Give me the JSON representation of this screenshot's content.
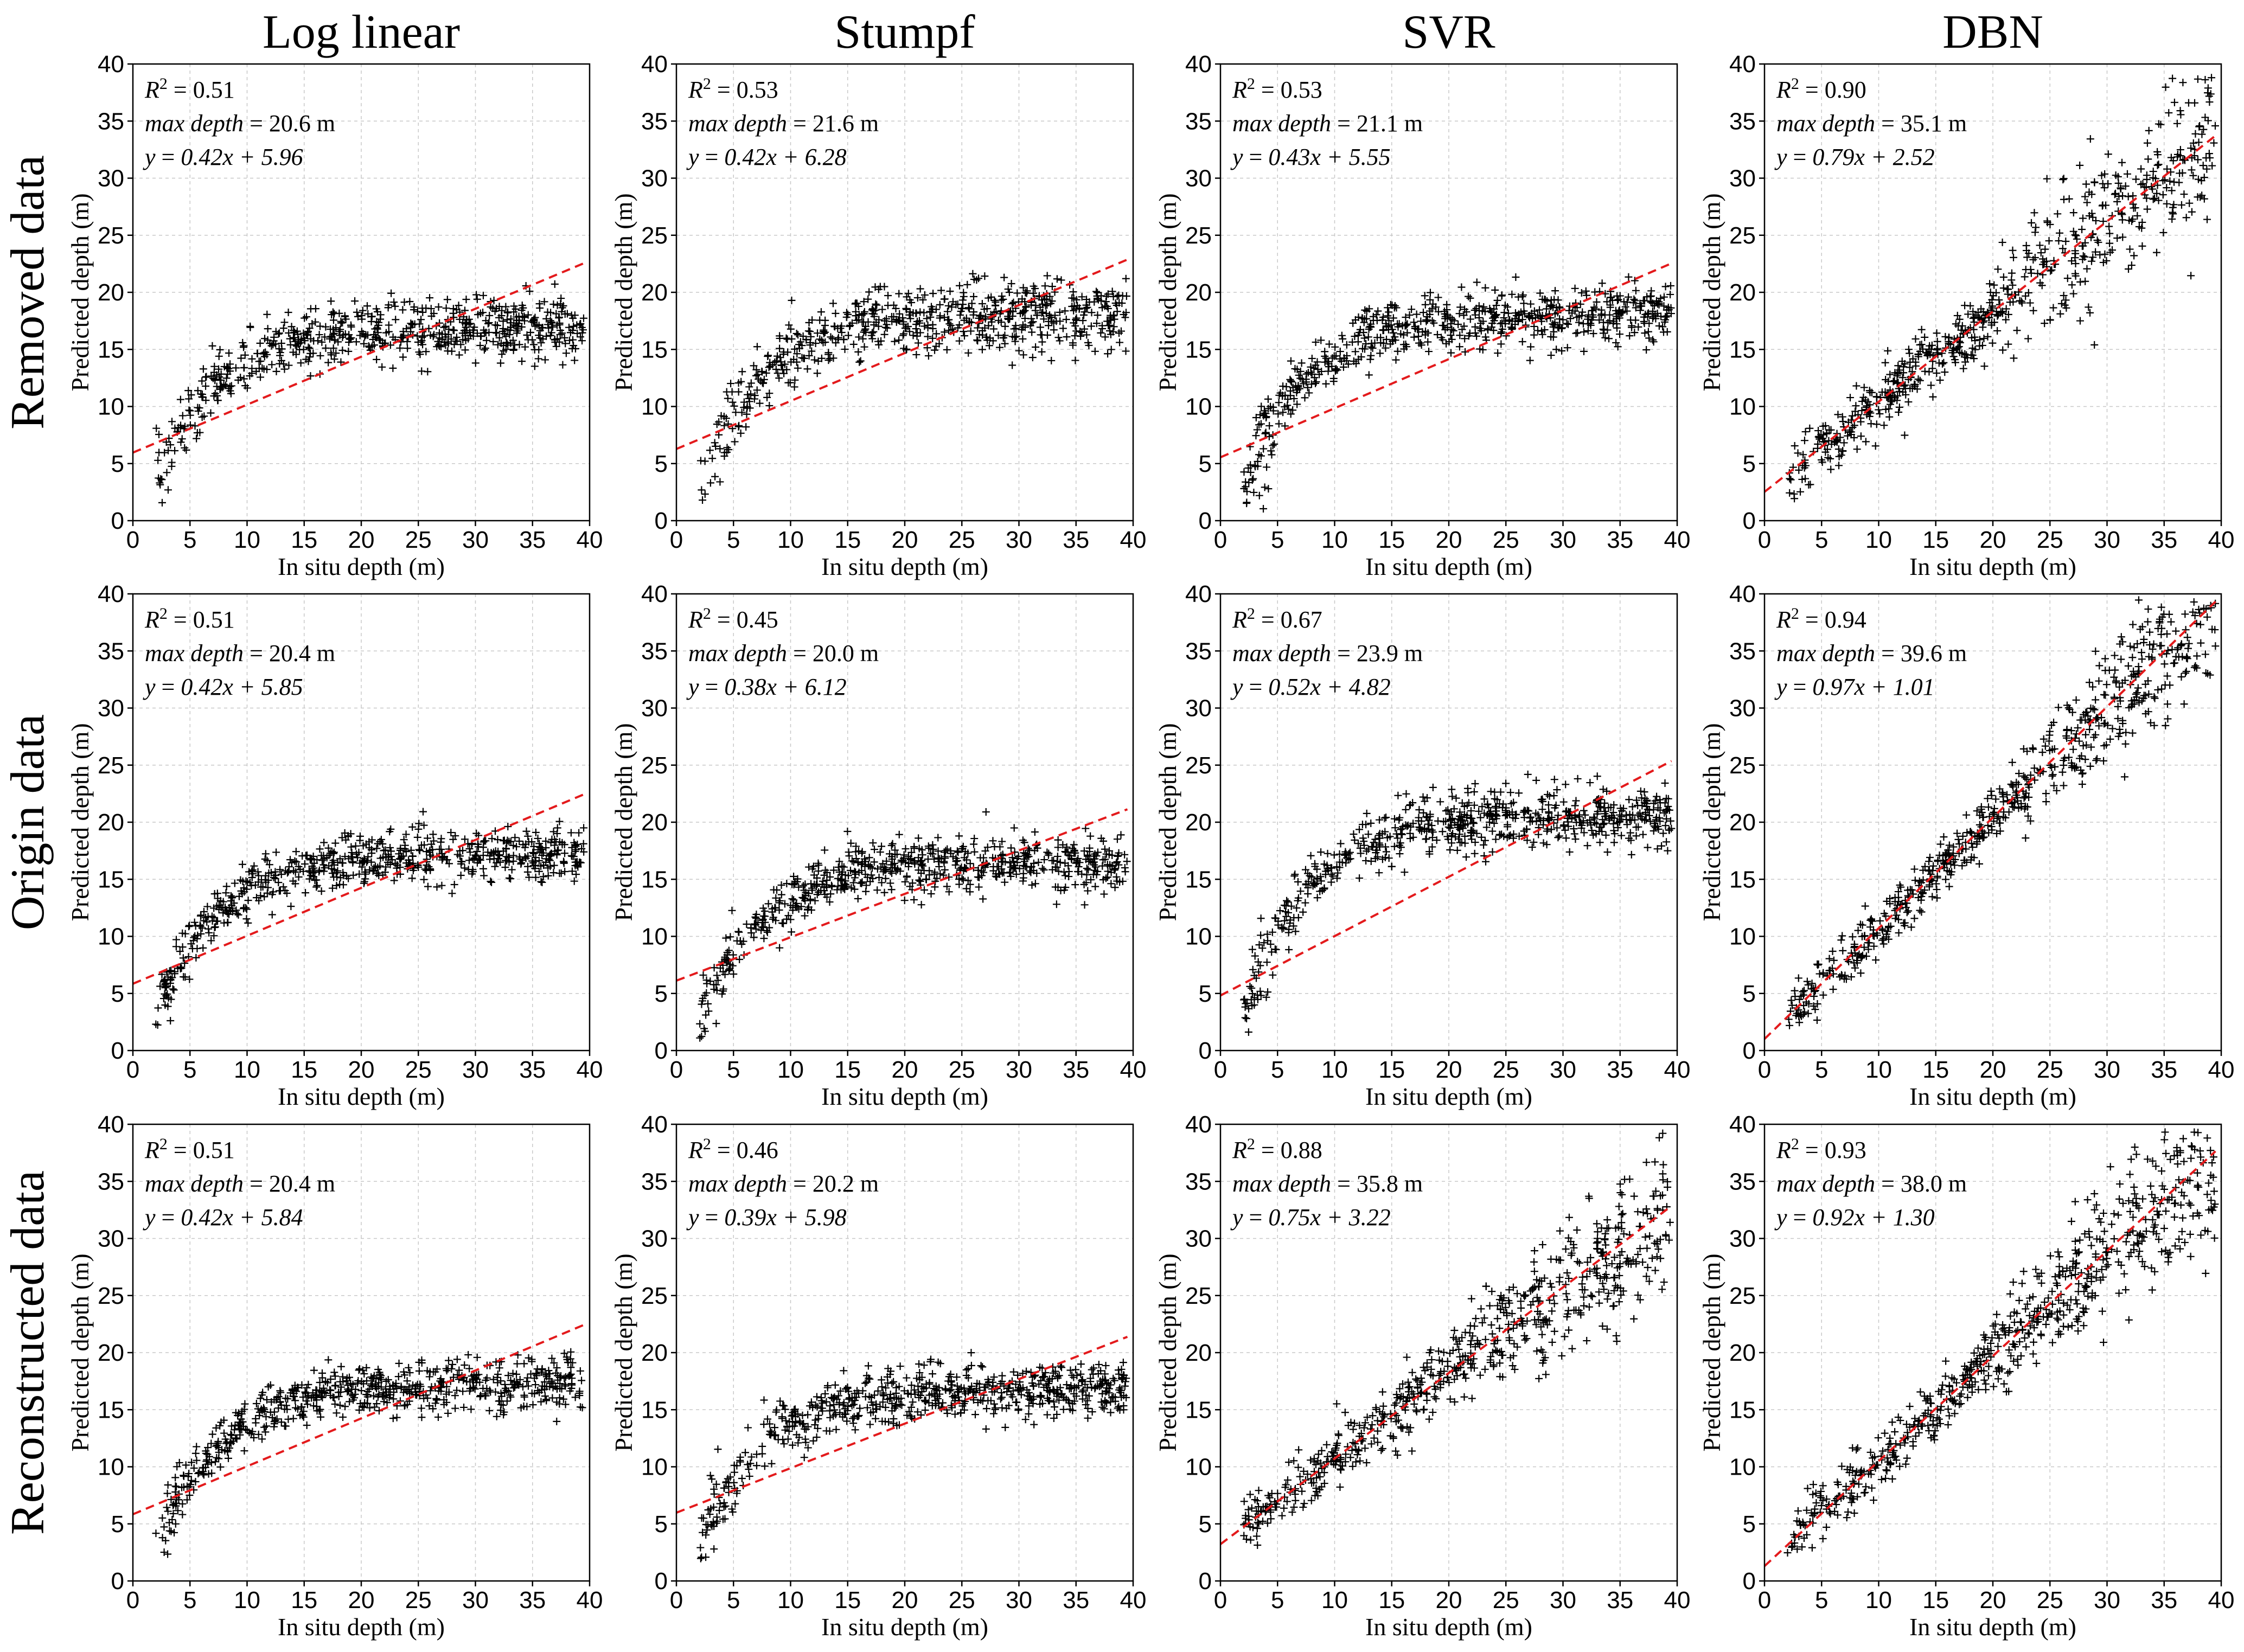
{
  "figure": {
    "column_titles": [
      "Log linear",
      "Stumpf",
      "SVR",
      "DBN"
    ],
    "row_titles": [
      "Removed data",
      "Origin data",
      "Reconstructed data"
    ]
  },
  "chart_data": [
    {
      "type": "scatter",
      "row": "Removed data",
      "column": "Log linear",
      "xlabel": "In situ depth (m)",
      "ylabel": "Predicted depth (m)",
      "xlim": [
        0,
        40
      ],
      "ylim": [
        0,
        40
      ],
      "ticks": [
        "0",
        "5",
        "10",
        "15",
        "20",
        "25",
        "30",
        "35",
        "40"
      ],
      "r2": "0.51",
      "max_depth": "20.6",
      "fit": {
        "slope": 0.42,
        "intercept": 5.96
      },
      "equation": "0.42x + 5.96",
      "scatter_profile": {
        "kind": "saturating",
        "plateau": 17.0,
        "spread": 1.3
      }
    },
    {
      "type": "scatter",
      "row": "Removed data",
      "column": "Stumpf",
      "xlabel": "In situ depth (m)",
      "ylabel": "Predicted depth (m)",
      "xlim": [
        0,
        40
      ],
      "ylim": [
        0,
        40
      ],
      "ticks": [
        "0",
        "5",
        "10",
        "15",
        "20",
        "25",
        "30",
        "35",
        "40"
      ],
      "r2": "0.53",
      "max_depth": "21.6",
      "fit": {
        "slope": 0.42,
        "intercept": 6.28
      },
      "equation": "0.42x + 6.28",
      "scatter_profile": {
        "kind": "saturating",
        "plateau": 18.0,
        "spread": 1.5
      }
    },
    {
      "type": "scatter",
      "row": "Removed data",
      "column": "SVR",
      "xlabel": "In situ depth (m)",
      "ylabel": "Predicted depth (m)",
      "xlim": [
        0,
        40
      ],
      "ylim": [
        0,
        40
      ],
      "ticks": [
        "0",
        "5",
        "10",
        "15",
        "20",
        "25",
        "30",
        "35",
        "40"
      ],
      "r2": "0.53",
      "max_depth": "21.1",
      "fit": {
        "slope": 0.43,
        "intercept": 5.55
      },
      "equation": "0.43x + 5.55",
      "scatter_profile": {
        "kind": "saturating",
        "plateau": 18.0,
        "spread": 1.3
      }
    },
    {
      "type": "scatter",
      "row": "Removed data",
      "column": "DBN",
      "xlabel": "In situ depth (m)",
      "ylabel": "Predicted depth (m)",
      "xlim": [
        0,
        40
      ],
      "ylim": [
        0,
        40
      ],
      "ticks": [
        "0",
        "5",
        "10",
        "15",
        "20",
        "25",
        "30",
        "35",
        "40"
      ],
      "r2": "0.90",
      "max_depth": "35.1",
      "fit": {
        "slope": 0.79,
        "intercept": 2.52
      },
      "equation": "0.79x + 2.52",
      "scatter_profile": {
        "kind": "linear",
        "plateau": 0,
        "spread": 1.4
      }
    },
    {
      "type": "scatter",
      "row": "Origin data",
      "column": "Log linear",
      "xlabel": "In situ depth (m)",
      "ylabel": "Predicted depth (m)",
      "xlim": [
        0,
        40
      ],
      "ylim": [
        0,
        40
      ],
      "ticks": [
        "0",
        "5",
        "10",
        "15",
        "20",
        "25",
        "30",
        "35",
        "40"
      ],
      "r2": "0.51",
      "max_depth": "20.4",
      "fit": {
        "slope": 0.42,
        "intercept": 5.85
      },
      "equation": "0.42x + 5.85",
      "scatter_profile": {
        "kind": "saturating",
        "plateau": 17.2,
        "spread": 1.1
      }
    },
    {
      "type": "scatter",
      "row": "Origin data",
      "column": "Stumpf",
      "xlabel": "In situ depth (m)",
      "ylabel": "Predicted depth (m)",
      "xlim": [
        0,
        40
      ],
      "ylim": [
        0,
        40
      ],
      "ticks": [
        "0",
        "5",
        "10",
        "15",
        "20",
        "25",
        "30",
        "35",
        "40"
      ],
      "r2": "0.45",
      "max_depth": "20.0",
      "fit": {
        "slope": 0.38,
        "intercept": 6.12
      },
      "equation": "0.38x + 6.12",
      "scatter_profile": {
        "kind": "saturating",
        "plateau": 16.5,
        "spread": 1.2
      }
    },
    {
      "type": "scatter",
      "row": "Origin data",
      "column": "SVR",
      "xlabel": "In situ depth (m)",
      "ylabel": "Predicted depth (m)",
      "xlim": [
        0,
        40
      ],
      "ylim": [
        0,
        40
      ],
      "ticks": [
        "0",
        "5",
        "10",
        "15",
        "20",
        "25",
        "30",
        "35",
        "40"
      ],
      "r2": "0.67",
      "max_depth": "23.9",
      "fit": {
        "slope": 0.52,
        "intercept": 4.82
      },
      "equation": "0.52x + 4.82",
      "scatter_profile": {
        "kind": "saturating",
        "plateau": 20.5,
        "spread": 1.3
      }
    },
    {
      "type": "scatter",
      "row": "Origin data",
      "column": "DBN",
      "xlabel": "In situ depth (m)",
      "ylabel": "Predicted depth (m)",
      "xlim": [
        0,
        40
      ],
      "ylim": [
        0,
        40
      ],
      "ticks": [
        "0",
        "5",
        "10",
        "15",
        "20",
        "25",
        "30",
        "35",
        "40"
      ],
      "r2": "0.94",
      "max_depth": "39.6",
      "fit": {
        "slope": 0.97,
        "intercept": 1.01
      },
      "equation": "0.97x + 1.01",
      "scatter_profile": {
        "kind": "linear",
        "plateau": 0,
        "spread": 1.1
      }
    },
    {
      "type": "scatter",
      "row": "Reconstructed data",
      "column": "Log linear",
      "xlabel": "In situ depth (m)",
      "ylabel": "Predicted depth (m)",
      "xlim": [
        0,
        40
      ],
      "ylim": [
        0,
        40
      ],
      "ticks": [
        "0",
        "5",
        "10",
        "15",
        "20",
        "25",
        "30",
        "35",
        "40"
      ],
      "r2": "0.51",
      "max_depth": "20.4",
      "fit": {
        "slope": 0.42,
        "intercept": 5.84
      },
      "equation": "0.42x + 5.84",
      "scatter_profile": {
        "kind": "saturating",
        "plateau": 17.2,
        "spread": 1.1
      }
    },
    {
      "type": "scatter",
      "row": "Reconstructed data",
      "column": "Stumpf",
      "xlabel": "In situ depth (m)",
      "ylabel": "Predicted depth (m)",
      "xlim": [
        0,
        40
      ],
      "ylim": [
        0,
        40
      ],
      "ticks": [
        "0",
        "5",
        "10",
        "15",
        "20",
        "25",
        "30",
        "35",
        "40"
      ],
      "r2": "0.46",
      "max_depth": "20.2",
      "fit": {
        "slope": 0.39,
        "intercept": 5.98
      },
      "equation": "0.39x + 5.98",
      "scatter_profile": {
        "kind": "saturating",
        "plateau": 16.8,
        "spread": 1.2
      }
    },
    {
      "type": "scatter",
      "row": "Reconstructed data",
      "column": "SVR",
      "xlabel": "In situ depth (m)",
      "ylabel": "Predicted depth (m)",
      "xlim": [
        0,
        40
      ],
      "ylim": [
        0,
        40
      ],
      "ticks": [
        "0",
        "5",
        "10",
        "15",
        "20",
        "25",
        "30",
        "35",
        "40"
      ],
      "r2": "0.88",
      "max_depth": "35.8",
      "fit": {
        "slope": 0.75,
        "intercept": 3.22
      },
      "equation": "0.75x + 3.22",
      "scatter_profile": {
        "kind": "linear",
        "plateau": 0,
        "spread": 1.3
      }
    },
    {
      "type": "scatter",
      "row": "Reconstructed data",
      "column": "DBN",
      "xlabel": "In situ depth (m)",
      "ylabel": "Predicted depth (m)",
      "xlim": [
        0,
        40
      ],
      "ylim": [
        0,
        40
      ],
      "ticks": [
        "0",
        "5",
        "10",
        "15",
        "20",
        "25",
        "30",
        "35",
        "40"
      ],
      "r2": "0.93",
      "max_depth": "38.0",
      "fit": {
        "slope": 0.92,
        "intercept": 1.3
      },
      "equation": "0.92x + 1.30",
      "scatter_profile": {
        "kind": "linear",
        "plateau": 0,
        "spread": 1.2
      }
    }
  ]
}
